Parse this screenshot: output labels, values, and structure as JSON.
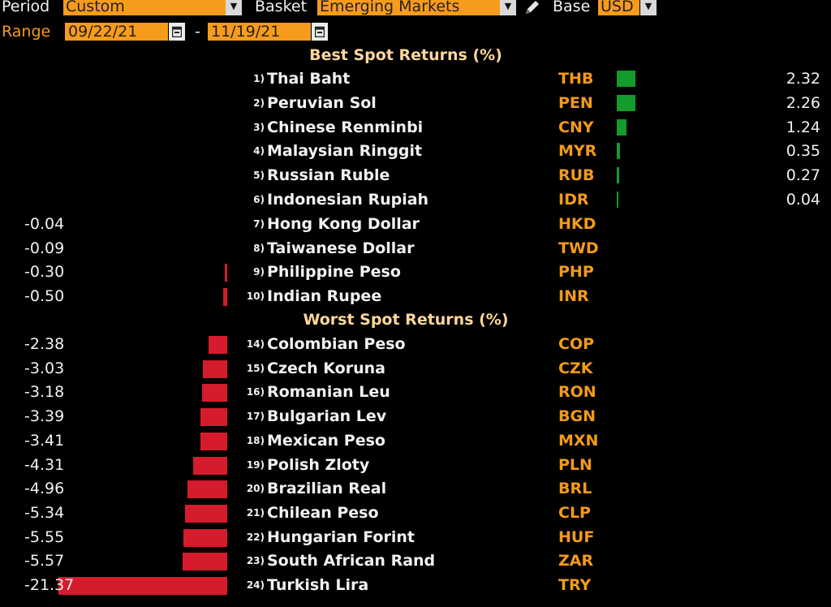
{
  "header": {
    "period_label": "Period",
    "period_value": "Custom",
    "basket_label": "Basket",
    "basket_value": "Emerging Markets",
    "base_label": "Base",
    "base_value": "USD",
    "range_label": "Range",
    "range_start": "09/22/21",
    "range_sep": "-",
    "range_end": "11/19/21"
  },
  "best_title": "Best Spot Returns (%)",
  "worst_title": "Worst Spot Returns (%)",
  "colors": {
    "accent": "#f79b1d",
    "positive": "#139b2b",
    "negative": "#d61b2c",
    "code": "#f59a19",
    "title": "#ffd79a"
  },
  "chart_data": {
    "type": "bar",
    "best": [
      {
        "rank": "1)",
        "name": "Thai Baht",
        "code": "THB",
        "value": 2.32
      },
      {
        "rank": "2)",
        "name": "Peruvian Sol",
        "code": "PEN",
        "value": 2.26
      },
      {
        "rank": "3)",
        "name": "Chinese Renminbi",
        "code": "CNY",
        "value": 1.24
      },
      {
        "rank": "4)",
        "name": "Malaysian Ringgit",
        "code": "MYR",
        "value": 0.35
      },
      {
        "rank": "5)",
        "name": "Russian Ruble",
        "code": "RUB",
        "value": 0.27
      },
      {
        "rank": "6)",
        "name": "Indonesian Rupiah",
        "code": "IDR",
        "value": 0.04
      },
      {
        "rank": "7)",
        "name": "Hong Kong Dollar",
        "code": "HKD",
        "value": -0.04
      },
      {
        "rank": "8)",
        "name": "Taiwanese Dollar",
        "code": "TWD",
        "value": -0.09
      },
      {
        "rank": "9)",
        "name": "Philippine Peso",
        "code": "PHP",
        "value": -0.3
      },
      {
        "rank": "10)",
        "name": "Indian Rupee",
        "code": "INR",
        "value": -0.5
      }
    ],
    "worst": [
      {
        "rank": "14)",
        "name": "Colombian Peso",
        "code": "COP",
        "value": -2.38
      },
      {
        "rank": "15)",
        "name": "Czech Koruna",
        "code": "CZK",
        "value": -3.03
      },
      {
        "rank": "16)",
        "name": "Romanian Leu",
        "code": "RON",
        "value": -3.18
      },
      {
        "rank": "17)",
        "name": "Bulgarian Lev",
        "code": "BGN",
        "value": -3.39
      },
      {
        "rank": "18)",
        "name": "Mexican Peso",
        "code": "MXN",
        "value": -3.41
      },
      {
        "rank": "19)",
        "name": "Polish Zloty",
        "code": "PLN",
        "value": -4.31
      },
      {
        "rank": "20)",
        "name": "Brazilian Real",
        "code": "BRL",
        "value": -4.96
      },
      {
        "rank": "21)",
        "name": "Chilean Peso",
        "code": "CLP",
        "value": -5.34
      },
      {
        "rank": "22)",
        "name": "Hungarian Forint",
        "code": "HUF",
        "value": -5.55
      },
      {
        "rank": "23)",
        "name": "South African Rand",
        "code": "ZAR",
        "value": -5.57
      },
      {
        "rank": "24)",
        "name": "Turkish Lira",
        "code": "TRY",
        "value": -21.37
      }
    ]
  }
}
